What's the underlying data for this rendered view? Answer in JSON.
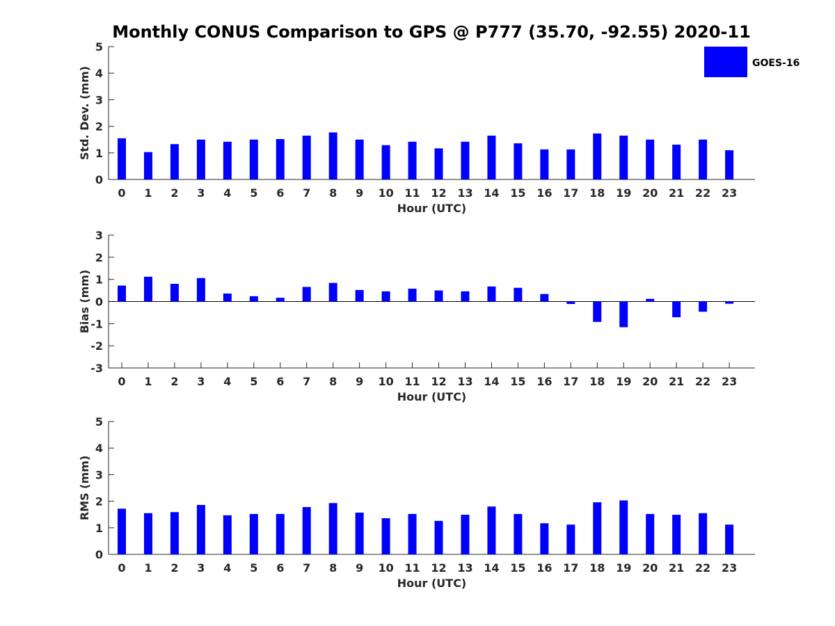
{
  "title": "Monthly CONUS Comparison to GPS @ P777 (35.70, -92.55) 2020-11",
  "legend": {
    "label": "GOES-16",
    "color": "#0000ff",
    "placement": "top-right"
  },
  "chart_data": [
    {
      "type": "bar",
      "xlabel": "Hour (UTC)",
      "ylabel": "Std. Dev. (mm)",
      "ylim": [
        0,
        5
      ],
      "yticks": [
        0,
        1,
        2,
        3,
        4,
        5
      ],
      "categories": [
        "0",
        "1",
        "2",
        "3",
        "4",
        "5",
        "6",
        "7",
        "8",
        "9",
        "10",
        "11",
        "12",
        "13",
        "14",
        "15",
        "16",
        "17",
        "18",
        "19",
        "20",
        "21",
        "22",
        "23"
      ],
      "series": [
        {
          "name": "GOES-16",
          "color": "#0000ff",
          "values": [
            1.55,
            1.03,
            1.33,
            1.5,
            1.42,
            1.5,
            1.52,
            1.65,
            1.77,
            1.5,
            1.29,
            1.42,
            1.17,
            1.42,
            1.65,
            1.36,
            1.13,
            1.13,
            1.73,
            1.65,
            1.5,
            1.31,
            1.5,
            1.1
          ]
        }
      ]
    },
    {
      "type": "bar",
      "xlabel": "Hour (UTC)",
      "ylabel": "Bias (mm)",
      "ylim": [
        -3,
        3
      ],
      "yticks": [
        -3,
        -2,
        -1,
        0,
        1,
        2,
        3
      ],
      "categories": [
        "0",
        "1",
        "2",
        "3",
        "4",
        "5",
        "6",
        "7",
        "8",
        "9",
        "10",
        "11",
        "12",
        "13",
        "14",
        "15",
        "16",
        "17",
        "18",
        "19",
        "20",
        "21",
        "22",
        "23"
      ],
      "series": [
        {
          "name": "GOES-16",
          "color": "#0000ff",
          "values": [
            0.72,
            1.12,
            0.8,
            1.06,
            0.36,
            0.24,
            0.17,
            0.66,
            0.84,
            0.52,
            0.46,
            0.58,
            0.5,
            0.46,
            0.68,
            0.62,
            0.34,
            -0.11,
            -0.92,
            -1.16,
            0.12,
            -0.71,
            -0.46,
            -0.1
          ]
        }
      ]
    },
    {
      "type": "bar",
      "xlabel": "Hour (UTC)",
      "ylabel": "RMS (mm)",
      "ylim": [
        0,
        5
      ],
      "yticks": [
        0,
        1,
        2,
        3,
        4,
        5
      ],
      "categories": [
        "0",
        "1",
        "2",
        "3",
        "4",
        "5",
        "6",
        "7",
        "8",
        "9",
        "10",
        "11",
        "12",
        "13",
        "14",
        "15",
        "16",
        "17",
        "18",
        "19",
        "20",
        "21",
        "22",
        "23"
      ],
      "series": [
        {
          "name": "GOES-16",
          "color": "#0000ff",
          "values": [
            1.72,
            1.55,
            1.59,
            1.86,
            1.47,
            1.52,
            1.52,
            1.78,
            1.93,
            1.57,
            1.36,
            1.52,
            1.26,
            1.49,
            1.8,
            1.52,
            1.17,
            1.12,
            1.96,
            2.03,
            1.52,
            1.49,
            1.55,
            1.12
          ]
        }
      ]
    }
  ]
}
